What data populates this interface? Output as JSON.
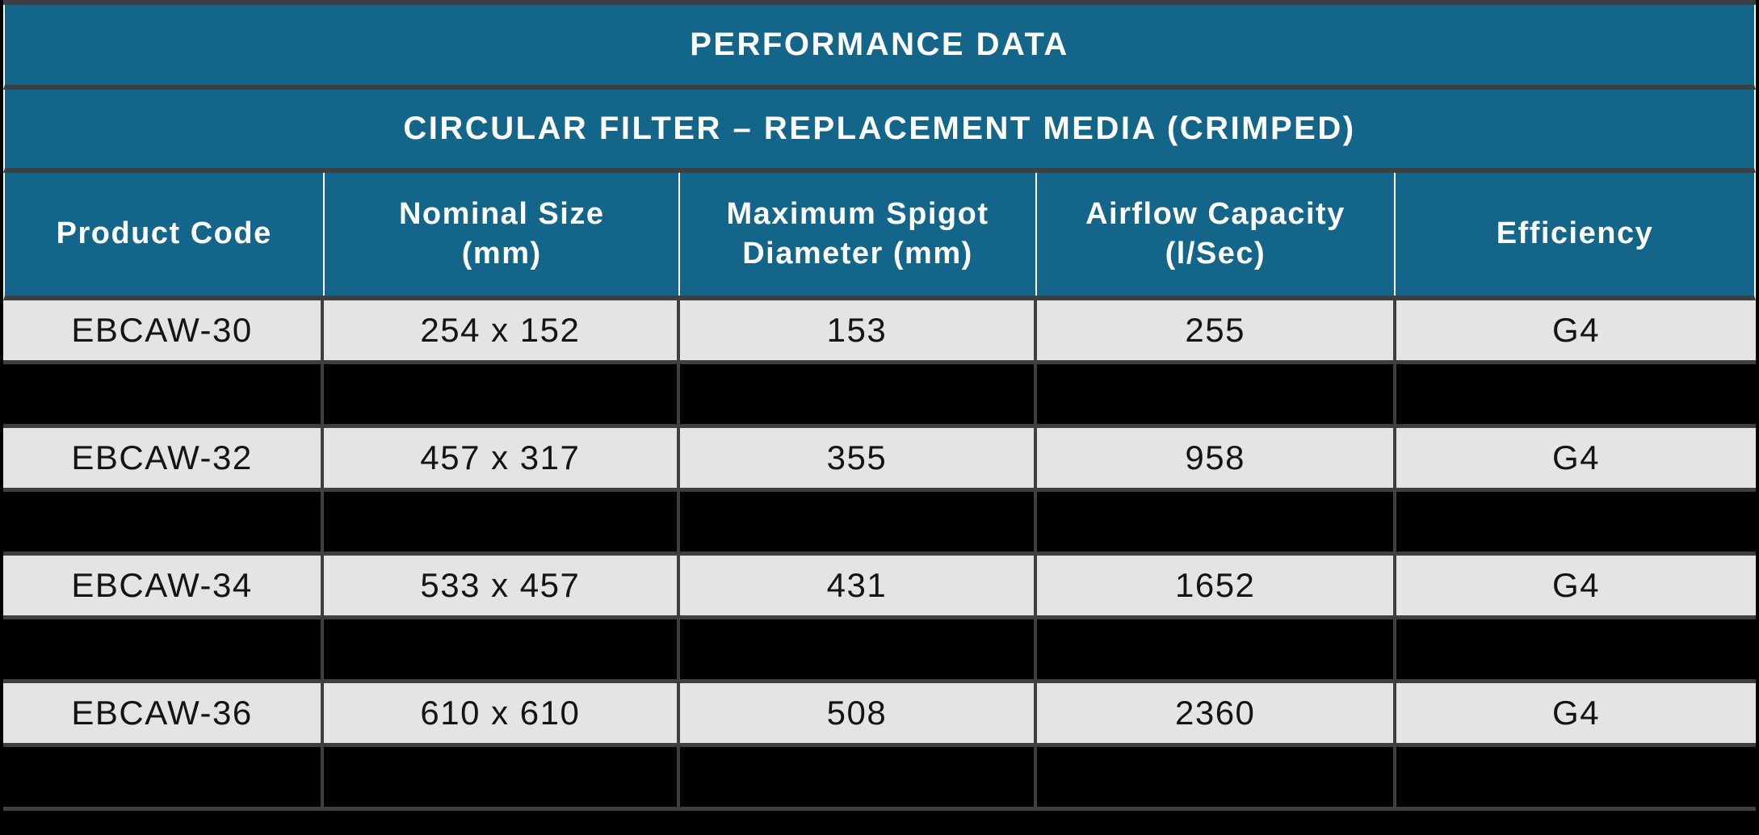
{
  "colors": {
    "header_teal": "#136689",
    "border_dark": "#3d4043",
    "row_light_gray": "#e4e4e4",
    "redacted_black": "#000000",
    "header_text": "#ffffff",
    "data_text": "#141414"
  },
  "header": {
    "title": "PERFORMANCE DATA",
    "subtitle": "CIRCULAR FILTER – REPLACEMENT MEDIA (CRIMPED)"
  },
  "table": {
    "columns": [
      {
        "id": "product_code",
        "label": "Product Code"
      },
      {
        "id": "nominal_size",
        "label": "Nominal Size\n(mm)"
      },
      {
        "id": "max_spigot_diameter",
        "label": "Maximum Spigot\nDiameter (mm)"
      },
      {
        "id": "airflow_capacity",
        "label": "Airflow Capacity\n(l/Sec)"
      },
      {
        "id": "efficiency",
        "label": "Efficiency"
      }
    ],
    "rows": [
      {
        "redacted": false,
        "cells": [
          "EBCAW-30",
          "254 x 152",
          "153",
          "255",
          "G4"
        ]
      },
      {
        "redacted": true,
        "cells": [
          "",
          "",
          "",
          "",
          ""
        ]
      },
      {
        "redacted": false,
        "cells": [
          "EBCAW-32",
          "457 x 317",
          "355",
          "958",
          "G4"
        ]
      },
      {
        "redacted": true,
        "cells": [
          "",
          "",
          "",
          "",
          ""
        ]
      },
      {
        "redacted": false,
        "cells": [
          "EBCAW-34",
          "533 x 457",
          "431",
          "1652",
          "G4"
        ]
      },
      {
        "redacted": true,
        "cells": [
          "",
          "",
          "",
          "",
          ""
        ]
      },
      {
        "redacted": false,
        "cells": [
          "EBCAW-36",
          "610 x 610",
          "508",
          "2360",
          "G4"
        ]
      },
      {
        "redacted": true,
        "cells": [
          "",
          "",
          "",
          "",
          ""
        ]
      }
    ]
  }
}
